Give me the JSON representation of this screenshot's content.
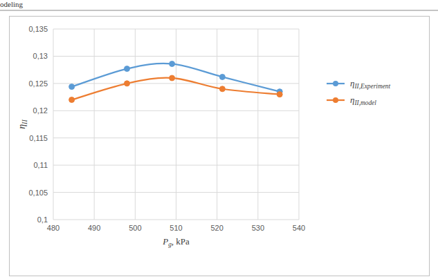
{
  "header": "odeling",
  "chart_data": {
    "type": "line",
    "x_label": "Pg, kPa",
    "y_label": "ηII",
    "x": [
      484.5,
      498,
      509,
      521.3,
      535.3
    ],
    "series": [
      {
        "name": "ηII,Experiment",
        "color": "#5b9bd5",
        "marker": "circle",
        "line_style": "smooth",
        "values": [
          0.1244,
          0.1277,
          0.1286,
          0.1262,
          0.1235
        ]
      },
      {
        "name": "ηII,model",
        "color": "#ed7d31",
        "marker": "circle",
        "line_style": "smooth",
        "values": [
          0.122,
          0.125,
          0.126,
          0.124,
          0.123
        ]
      }
    ],
    "xlim": [
      480,
      540
    ],
    "xticks": [
      480,
      490,
      500,
      510,
      520,
      530,
      540
    ],
    "ylim": [
      0.1,
      0.135
    ],
    "yticks": [
      {
        "value": 0.1,
        "label": "0,1"
      },
      {
        "value": 0.105,
        "label": "0,105"
      },
      {
        "value": 0.11,
        "label": "0,11"
      },
      {
        "value": 0.115,
        "label": "0,115"
      },
      {
        "value": 0.12,
        "label": "0,12"
      },
      {
        "value": 0.125,
        "label": "0,125"
      },
      {
        "value": 0.13,
        "label": "0,13"
      },
      {
        "value": 0.135,
        "label": "0,135"
      }
    ],
    "grid": true,
    "legend": "right"
  }
}
